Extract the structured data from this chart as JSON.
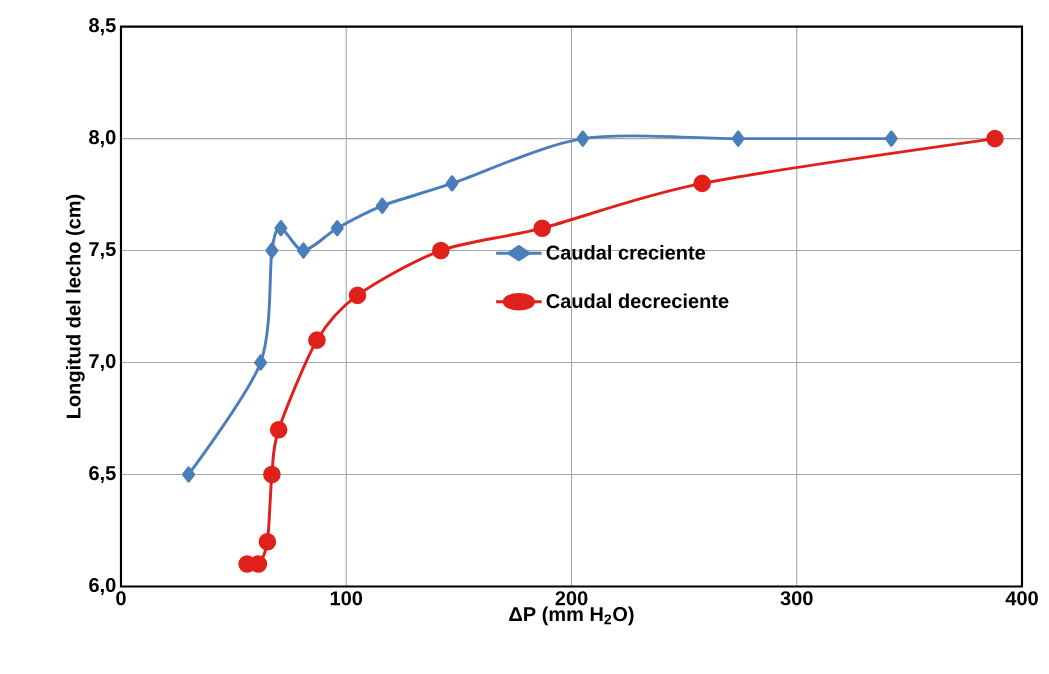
{
  "chart_data": {
    "type": "line",
    "xlabel": "ΔP (mm H$_{2}$O)",
    "ylabel": "Longitud del lecho (cm)",
    "xlim": [
      0,
      400
    ],
    "xticks": [
      0,
      100,
      200,
      300,
      400
    ],
    "ylim": [
      6.0,
      8.5
    ],
    "yticks": [
      {
        "value": 6.0,
        "label": "6,0"
      },
      {
        "value": 6.5,
        "label": "6,5"
      },
      {
        "value": 7.0,
        "label": "7,0"
      },
      {
        "value": 7.5,
        "label": "7,5"
      },
      {
        "value": 8.0,
        "label": "8,0"
      },
      {
        "value": 8.5,
        "label": "8,5"
      }
    ],
    "grid": true,
    "legend": "right",
    "series": [
      {
        "name": "Caudal creciente",
        "color": "#4a7ebb",
        "marker": "diamond",
        "x": [
          30,
          62,
          67,
          71,
          81,
          96,
          116,
          147,
          205,
          274,
          342
        ],
        "values": [
          6.5,
          7.0,
          7.5,
          7.6,
          7.5,
          7.6,
          7.7,
          7.8,
          8.0,
          8.0,
          8.0
        ]
      },
      {
        "name": "Caudal decreciente",
        "color": "#e0201b",
        "marker": "circle",
        "x": [
          56,
          61,
          65,
          67,
          70,
          87,
          105,
          142,
          187,
          258,
          388
        ],
        "values": [
          6.1,
          6.1,
          6.2,
          6.5,
          6.7,
          7.1,
          7.3,
          7.5,
          7.6,
          7.8,
          8.0
        ]
      }
    ]
  }
}
